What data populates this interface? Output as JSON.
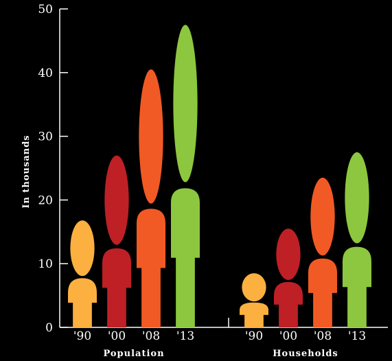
{
  "chart_data": {
    "type": "bar",
    "title": "",
    "ylabel": "In thousands",
    "ylim": [
      0,
      50
    ],
    "yticks": [
      "0",
      "10",
      "20",
      "30",
      "40",
      "50"
    ],
    "groups": [
      {
        "name": "Population",
        "categories": [
          "'90",
          "'00",
          "'08",
          "'13"
        ],
        "values": [
          16.8,
          27.0,
          40.5,
          47.5
        ]
      },
      {
        "name": "Households",
        "categories": [
          "'90",
          "'00",
          "'08",
          "'13"
        ],
        "values": [
          8.5,
          15.5,
          23.5,
          27.5
        ]
      }
    ],
    "colors": [
      "#fbb040",
      "#be2026",
      "#f15a24",
      "#8dc63f"
    ],
    "grid": false,
    "legend": "none"
  }
}
